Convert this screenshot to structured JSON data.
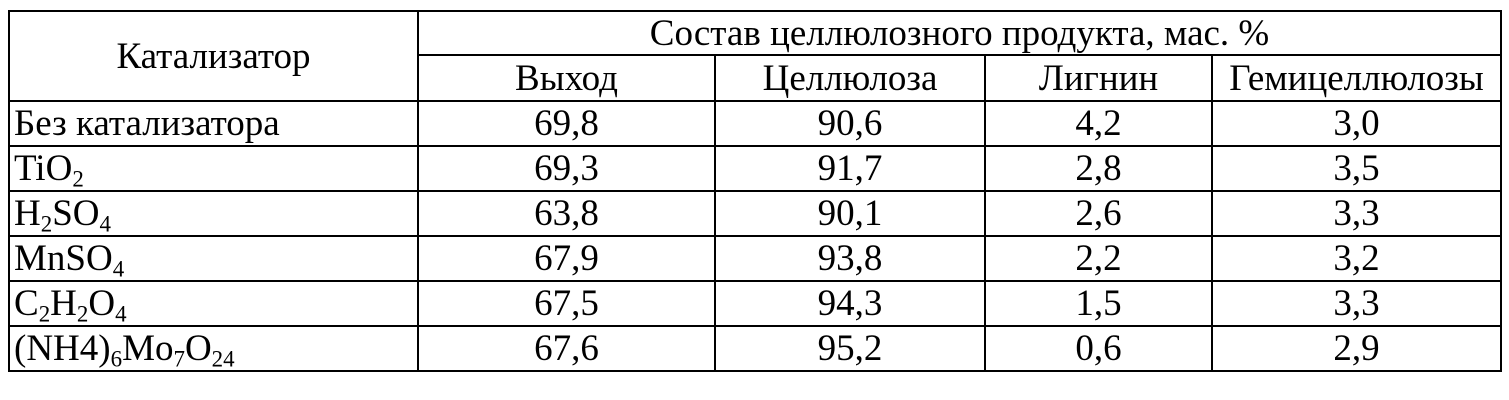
{
  "table": {
    "header": {
      "catalyst": "Катализатор",
      "composition_group": "Состав целлюлозного продукта, мас. %",
      "columns": [
        "Выход",
        "Целлюлоза",
        "Лигнин",
        "Гемицеллюлозы"
      ]
    },
    "rows": [
      {
        "catalyst_parts": [
          {
            "t": "Без катализатора",
            "sub": false
          }
        ],
        "values": [
          "69,8",
          "90,6",
          "4,2",
          "3,0"
        ]
      },
      {
        "catalyst_parts": [
          {
            "t": "TiO",
            "sub": false
          },
          {
            "t": "2",
            "sub": true
          }
        ],
        "values": [
          "69,3",
          "91,7",
          "2,8",
          "3,5"
        ]
      },
      {
        "catalyst_parts": [
          {
            "t": "H",
            "sub": false
          },
          {
            "t": "2",
            "sub": true
          },
          {
            "t": "SO",
            "sub": false
          },
          {
            "t": "4",
            "sub": true
          }
        ],
        "values": [
          "63,8",
          "90,1",
          "2,6",
          "3,3"
        ]
      },
      {
        "catalyst_parts": [
          {
            "t": "MnSO",
            "sub": false
          },
          {
            "t": "4",
            "sub": true
          }
        ],
        "values": [
          "67,9",
          "93,8",
          "2,2",
          "3,2"
        ]
      },
      {
        "catalyst_parts": [
          {
            "t": "C",
            "sub": false
          },
          {
            "t": "2",
            "sub": true
          },
          {
            "t": "H",
            "sub": false
          },
          {
            "t": "2",
            "sub": true
          },
          {
            "t": "O",
            "sub": false
          },
          {
            "t": "4",
            "sub": true
          }
        ],
        "values": [
          "67,5",
          "94,3",
          "1,5",
          "3,3"
        ]
      },
      {
        "catalyst_parts": [
          {
            "t": "(NH4)",
            "sub": false
          },
          {
            "t": "6",
            "sub": true
          },
          {
            "t": "Mo",
            "sub": false
          },
          {
            "t": "7",
            "sub": true
          },
          {
            "t": "O",
            "sub": false
          },
          {
            "t": "24",
            "sub": true
          }
        ],
        "values": [
          "67,6",
          "95,2",
          "0,6",
          "2,9"
        ]
      }
    ]
  }
}
